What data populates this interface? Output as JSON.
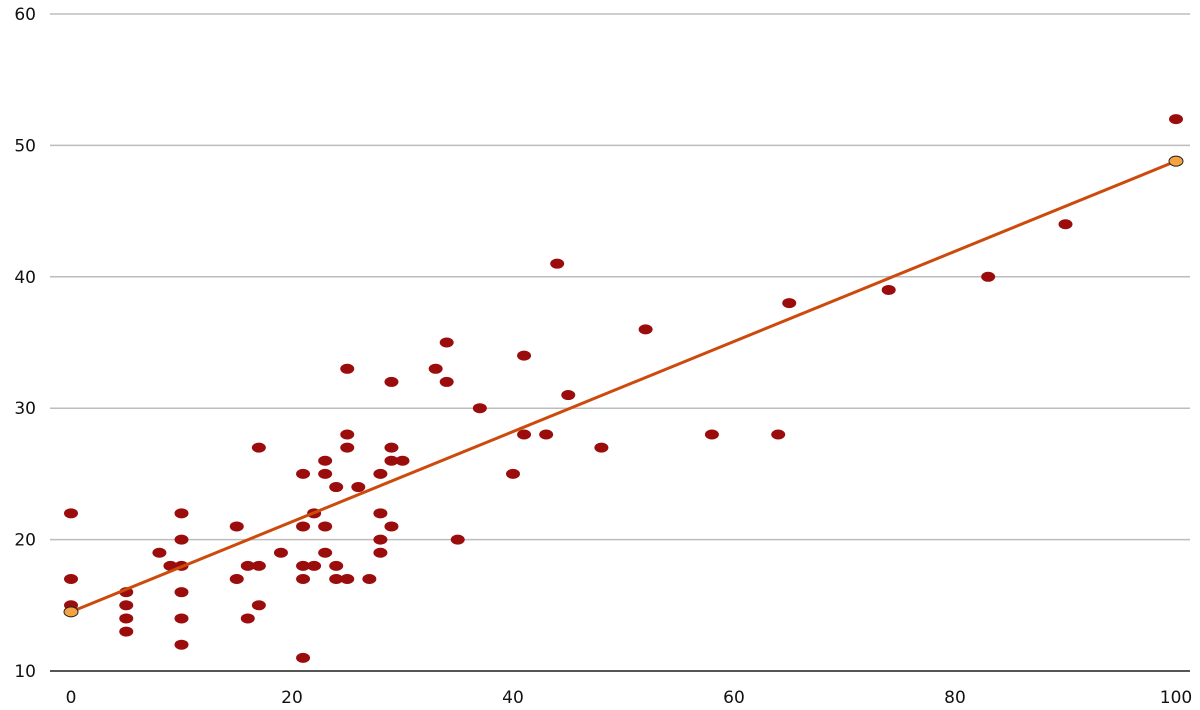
{
  "chart_data": {
    "type": "scatter",
    "title": "",
    "xlabel": "",
    "ylabel": "",
    "xlim": [
      0,
      100
    ],
    "ylim": [
      10,
      60
    ],
    "x_ticks": [
      "0",
      "20",
      "40",
      "60",
      "80",
      "100"
    ],
    "y_ticks": [
      "10",
      "20",
      "30",
      "40",
      "50",
      "60"
    ],
    "grid": "horizontal",
    "colors": {
      "points": "#9b0d0d",
      "trendline": "#cc4a0b",
      "grid": "#bdbdbd",
      "axis": "#555555"
    },
    "series": [
      {
        "kind": "points",
        "points": [
          [
            0,
            22
          ],
          [
            0,
            17
          ],
          [
            0,
            15
          ],
          [
            0,
            14.5
          ],
          [
            5,
            16
          ],
          [
            5,
            15
          ],
          [
            5,
            14
          ],
          [
            5,
            13
          ],
          [
            8,
            19
          ],
          [
            9,
            18
          ],
          [
            10,
            22
          ],
          [
            10,
            20
          ],
          [
            10,
            18
          ],
          [
            10,
            16
          ],
          [
            10,
            14
          ],
          [
            10,
            12
          ],
          [
            15,
            21
          ],
          [
            15,
            17
          ],
          [
            16,
            18
          ],
          [
            16,
            14
          ],
          [
            17,
            27
          ],
          [
            17,
            18
          ],
          [
            17,
            15
          ],
          [
            19,
            19
          ],
          [
            21,
            25
          ],
          [
            21,
            21
          ],
          [
            21,
            18
          ],
          [
            21,
            17
          ],
          [
            21,
            11
          ],
          [
            22,
            22
          ],
          [
            22,
            18
          ],
          [
            23,
            26
          ],
          [
            23,
            25
          ],
          [
            23,
            21
          ],
          [
            23,
            19
          ],
          [
            24,
            24
          ],
          [
            24,
            18
          ],
          [
            24,
            17
          ],
          [
            25,
            33
          ],
          [
            25,
            28
          ],
          [
            25,
            27
          ],
          [
            25,
            17
          ],
          [
            26,
            24
          ],
          [
            27,
            17
          ],
          [
            28,
            25
          ],
          [
            28,
            22
          ],
          [
            28,
            20
          ],
          [
            28,
            19
          ],
          [
            29,
            32
          ],
          [
            29,
            27
          ],
          [
            29,
            26
          ],
          [
            29,
            21
          ],
          [
            30,
            26
          ],
          [
            33,
            33
          ],
          [
            34,
            35
          ],
          [
            34,
            32
          ],
          [
            35,
            20
          ],
          [
            37,
            30
          ],
          [
            40,
            25
          ],
          [
            41,
            34
          ],
          [
            41,
            28
          ],
          [
            43,
            28
          ],
          [
            44,
            41
          ],
          [
            45,
            31
          ],
          [
            48,
            27
          ],
          [
            52,
            36
          ],
          [
            58,
            28
          ],
          [
            64,
            28
          ],
          [
            65,
            38
          ],
          [
            74,
            39
          ],
          [
            83,
            40
          ],
          [
            90,
            44
          ],
          [
            100,
            52
          ],
          [
            100,
            48.8
          ]
        ]
      },
      {
        "kind": "trendline",
        "points": [
          [
            0,
            14.5
          ],
          [
            100,
            48.8
          ]
        ]
      }
    ]
  }
}
